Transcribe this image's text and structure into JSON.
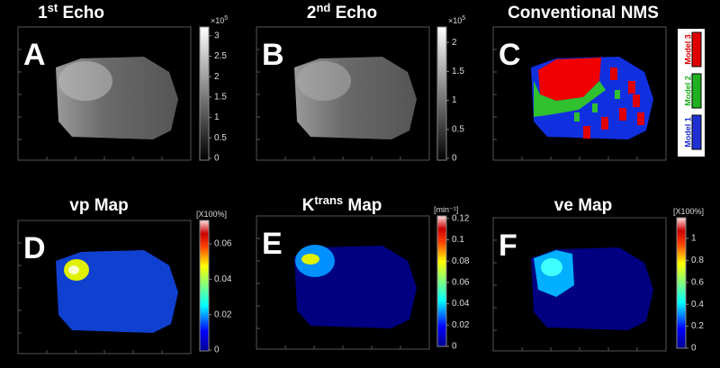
{
  "panels": [
    {
      "letter": "A",
      "title": {
        "main": "1",
        "sup": "st",
        "rest": " Echo"
      },
      "scale": {
        "base": "×10",
        "exp": "5"
      },
      "ticks": [
        "0",
        "0.5",
        "1",
        "1.5",
        "2",
        "2.5",
        "3"
      ]
    },
    {
      "letter": "B",
      "title": {
        "main": "2",
        "sup": "nd",
        "rest": " Echo"
      },
      "scale": {
        "base": "×10",
        "exp": "5"
      },
      "ticks": [
        "0",
        "0.5",
        "1",
        "1.5",
        "2"
      ]
    },
    {
      "letter": "C",
      "title": {
        "main": "Conventional NMS"
      },
      "legend": [
        "Model 3",
        "Model 2",
        "Model 1"
      ]
    },
    {
      "letter": "D",
      "title": {
        "main": "vp Map"
      },
      "unit": "[X100%]",
      "ticks": [
        "0",
        "0.02",
        "0.04",
        "0.06"
      ]
    },
    {
      "letter": "E",
      "title": {
        "main": "K",
        "sup": "trans",
        "rest": "  Map"
      },
      "unit": "[min⁻¹]",
      "ticks": [
        "0",
        "0.02",
        "0.04",
        "0.06",
        "0.08",
        "0.1",
        "0.12"
      ]
    },
    {
      "letter": "F",
      "title": {
        "main": "ve  Map"
      },
      "unit": "[X100%]",
      "ticks": [
        "0",
        "0.2",
        "0.4",
        "0.6",
        "0.8",
        "1"
      ]
    }
  ]
}
